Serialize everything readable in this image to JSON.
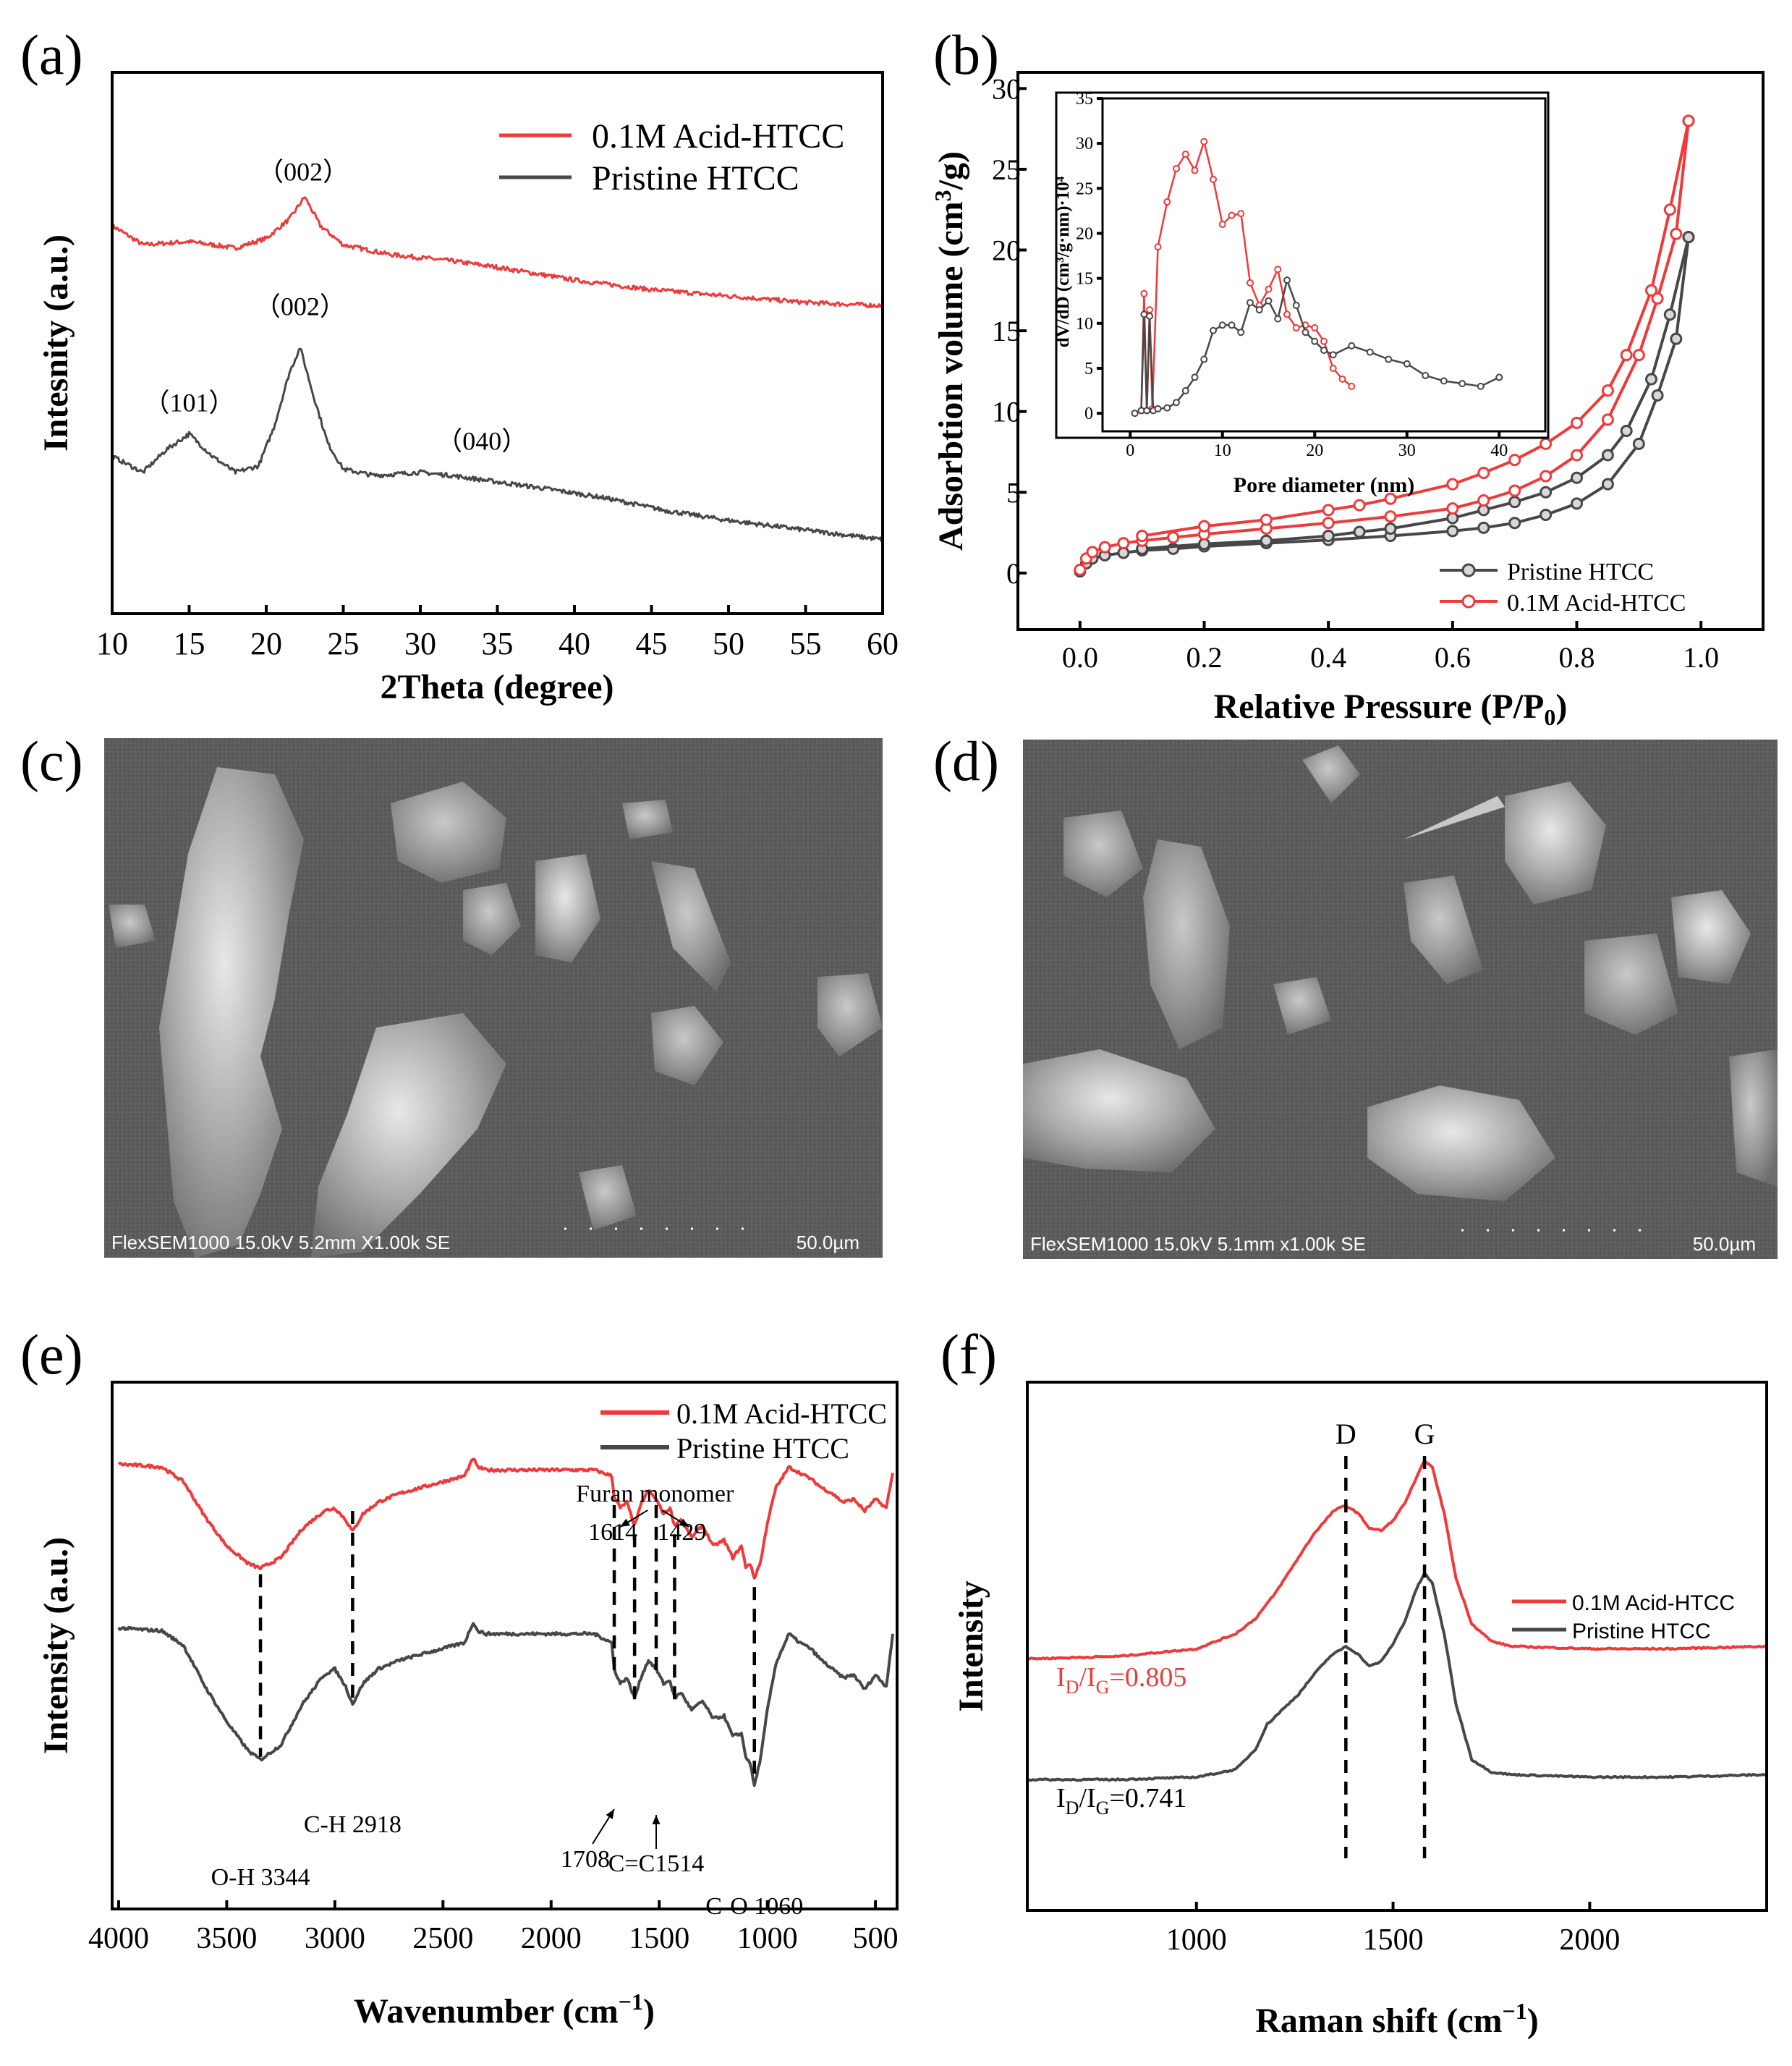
{
  "panels": {
    "a": "(a)",
    "b": "(b)",
    "c": "(c)",
    "d": "(d)",
    "e": "(e)",
    "f": "(f)"
  },
  "colors": {
    "acid": "#f03a3a",
    "pristine": "#474747",
    "sem_bg": "#5a5a5a"
  },
  "sem": {
    "c": {
      "caption": "FlexSEM1000 15.0kV 5.2mm X1.00k SE",
      "scale": "50.0µm"
    },
    "d": {
      "caption": "FlexSEM1000 15.0kV 5.1mm x1.00k SE",
      "scale": "50.0µm"
    }
  },
  "chart_data": [
    {
      "panel": "a",
      "type": "line",
      "xlabel": "2Theta (degree)",
      "ylabel": "Intesnity (a.u.)",
      "xlim": [
        10,
        60
      ],
      "xticks": [
        10,
        15,
        20,
        25,
        30,
        35,
        40,
        45,
        50,
        55,
        60
      ],
      "grid": false,
      "legend_position": "top-right",
      "series": [
        {
          "name": "0.1M Acid-HTCC",
          "color": "#f03a3a",
          "x": [
            10,
            12,
            15,
            18,
            20,
            21.5,
            22.5,
            23.5,
            25,
            28,
            32,
            35,
            40,
            45,
            50,
            55,
            60
          ],
          "y": [
            5.4,
            5.1,
            5.15,
            5.05,
            5.2,
            5.5,
            5.85,
            5.4,
            5.1,
            4.95,
            4.85,
            4.75,
            4.55,
            4.4,
            4.3,
            4.2,
            4.15
          ]
        },
        {
          "name": "Pristine HTCC",
          "color": "#474747",
          "x": [
            10,
            12,
            13.5,
            15,
            16.5,
            18,
            19.5,
            20.5,
            21.5,
            22.2,
            23,
            24,
            25,
            27,
            30,
            32,
            35,
            38,
            42,
            46,
            50,
            55,
            60
          ],
          "y": [
            1.8,
            1.55,
            1.9,
            2.15,
            1.8,
            1.55,
            1.65,
            2.25,
            3.1,
            3.5,
            2.8,
            2.0,
            1.6,
            1.5,
            1.55,
            1.5,
            1.4,
            1.3,
            1.15,
            0.95,
            0.8,
            0.65,
            0.5
          ]
        }
      ],
      "annotations": [
        {
          "text": "（002）",
          "x": 22.4,
          "y": 6.1
        },
        {
          "text": "（101）",
          "x": 15,
          "y": 2.5
        },
        {
          "text": "（002）",
          "x": 22.2,
          "y": 4.0
        },
        {
          "text": "（040）",
          "x": 34,
          "y": 1.9
        }
      ]
    },
    {
      "panel": "b",
      "type": "line",
      "xlabel": "Relative Pressure (P/P₀)",
      "ylabel": "Adsorbtion volume (cm³/g)",
      "xlim": [
        -0.1,
        1.1
      ],
      "ylim": [
        -3.5,
        31
      ],
      "xticks": [
        0.0,
        0.2,
        0.4,
        0.6,
        0.8,
        1.0
      ],
      "yticks": [
        0,
        5,
        10,
        15,
        20,
        25,
        30
      ],
      "grid": false,
      "legend_position": "bottom-right",
      "series": [
        {
          "name": "Pristine HTCC",
          "color": "#474747",
          "adsorption": {
            "x": [
              0.0,
              0.01,
              0.02,
              0.04,
              0.07,
              0.1,
              0.15,
              0.2,
              0.3,
              0.4,
              0.5,
              0.6,
              0.65,
              0.7,
              0.75,
              0.8,
              0.85,
              0.9,
              0.93,
              0.96,
              0.98
            ],
            "y": [
              0.1,
              0.6,
              0.9,
              1.1,
              1.25,
              1.4,
              1.5,
              1.65,
              1.85,
              2.05,
              2.3,
              2.6,
              2.8,
              3.1,
              3.6,
              4.3,
              5.5,
              8.0,
              11.0,
              14.5,
              20.8
            ]
          },
          "desorption": {
            "x": [
              0.98,
              0.95,
              0.92,
              0.88,
              0.85,
              0.8,
              0.75,
              0.7,
              0.65,
              0.6,
              0.5,
              0.45,
              0.4,
              0.3,
              0.2,
              0.1
            ],
            "y": [
              20.8,
              16.0,
              12.0,
              8.8,
              7.3,
              5.9,
              5.0,
              4.4,
              3.9,
              3.4,
              2.75,
              2.55,
              2.3,
              2.0,
              1.8,
              1.5
            ]
          }
        },
        {
          "name": "0.1M Acid-HTCC",
          "color": "#f03a3a",
          "adsorption": {
            "x": [
              0.0,
              0.01,
              0.02,
              0.04,
              0.07,
              0.1,
              0.15,
              0.2,
              0.3,
              0.4,
              0.5,
              0.6,
              0.65,
              0.7,
              0.75,
              0.8,
              0.85,
              0.9,
              0.93,
              0.96,
              0.98
            ],
            "y": [
              0.2,
              0.9,
              1.3,
              1.6,
              1.85,
              2.0,
              2.2,
              2.4,
              2.75,
              3.1,
              3.5,
              4.0,
              4.5,
              5.1,
              6.0,
              7.3,
              9.5,
              13.5,
              17.0,
              21.0,
              28.0
            ]
          },
          "desorption": {
            "x": [
              0.98,
              0.95,
              0.92,
              0.88,
              0.85,
              0.8,
              0.75,
              0.7,
              0.65,
              0.6,
              0.5,
              0.45,
              0.4,
              0.3,
              0.2,
              0.1
            ],
            "y": [
              28.0,
              22.5,
              17.5,
              13.5,
              11.3,
              9.3,
              8.0,
              7.0,
              6.2,
              5.5,
              4.6,
              4.2,
              3.9,
              3.3,
              2.9,
              2.3
            ]
          }
        }
      ],
      "inset": {
        "type": "line",
        "xlabel": "Pore diameter (nm)",
        "ylabel": "dV/dD (cm³/g·nm)·10⁴",
        "xlim": [
          -3,
          45
        ],
        "ylim": [
          -2,
          35
        ],
        "xticks": [
          0,
          10,
          20,
          30,
          40
        ],
        "yticks": [
          0,
          5,
          10,
          15,
          20,
          25,
          30,
          35
        ],
        "series": [
          {
            "name": "0.1M Acid-HTCC",
            "color": "#f03a3a",
            "x": [
              0.5,
              1.2,
              1.5,
              1.8,
              2.1,
              2.4,
              3,
              4,
              5,
              6,
              7,
              8,
              9,
              10,
              11,
              12,
              13,
              14,
              15,
              16,
              17,
              18,
              19,
              20,
              21,
              22,
              23,
              24
            ],
            "y": [
              0,
              0.3,
              13.3,
              0.3,
              11.5,
              0.5,
              18.5,
              23.5,
              27.2,
              28.8,
              27.0,
              30.2,
              26.0,
              21.0,
              22.0,
              22.2,
              14.5,
              12.0,
              13.8,
              16.0,
              11.0,
              9.5,
              9.8,
              9.5,
              8.0,
              5.0,
              3.8,
              3.0
            ]
          },
          {
            "name": "Pristine HTCC",
            "color": "#474747",
            "x": [
              0.5,
              1.2,
              1.5,
              1.8,
              2.1,
              2.5,
              3,
              4,
              5,
              6,
              7,
              8,
              9,
              10,
              11,
              12,
              13,
              14,
              15,
              16,
              17,
              18,
              19,
              20,
              21,
              22,
              24,
              26,
              28,
              30,
              32,
              34,
              36,
              38,
              40
            ],
            "y": [
              0,
              0.3,
              11.0,
              0.3,
              10.8,
              0.3,
              0.5,
              0.6,
              1.2,
              2.5,
              4.0,
              6.0,
              9.2,
              9.8,
              9.8,
              9.0,
              12.3,
              11.5,
              12.5,
              10.5,
              14.8,
              12.0,
              9.0,
              8.0,
              7.0,
              6.5,
              7.5,
              6.8,
              6.0,
              5.5,
              4.2,
              3.6,
              3.3,
              3.0,
              4.0
            ]
          }
        ]
      }
    },
    {
      "panel": "e",
      "type": "line",
      "xlabel": "Wavenumber (cm⁻¹)",
      "ylabel": "Intensity (a.u.)",
      "xlim": [
        4030,
        400
      ],
      "xticks": [
        4000,
        3500,
        3000,
        2500,
        2000,
        1500,
        1000,
        500
      ],
      "grid": false,
      "legend_position": "top-right",
      "series": [
        {
          "name": "0.1M Acid-HTCC",
          "color": "#f03a3a",
          "x": [
            4000,
            3800,
            3700,
            3600,
            3500,
            3400,
            3344,
            3250,
            3150,
            3050,
            3000,
            2950,
            2918,
            2870,
            2800,
            2700,
            2600,
            2500,
            2400,
            2360,
            2340,
            2300,
            2200,
            2000,
            1800,
            1720,
            1708,
            1680,
            1650,
            1614,
            1580,
            1550,
            1514,
            1480,
            1450,
            1429,
            1400,
            1350,
            1300,
            1250,
            1200,
            1160,
            1120,
            1100,
            1080,
            1060,
            1030,
            1000,
            960,
            900,
            850,
            800,
            750,
            700,
            650,
            600,
            550,
            500,
            450,
            420
          ],
          "y": [
            7.6,
            7.55,
            7.3,
            6.7,
            6.2,
            5.9,
            5.82,
            6.0,
            6.5,
            6.8,
            6.85,
            6.65,
            6.45,
            6.75,
            6.95,
            7.1,
            7.2,
            7.3,
            7.4,
            7.7,
            7.55,
            7.5,
            7.5,
            7.5,
            7.5,
            7.4,
            7.05,
            6.85,
            6.95,
            6.55,
            6.95,
            7.15,
            7.0,
            6.75,
            6.85,
            6.55,
            6.65,
            6.35,
            6.55,
            6.2,
            6.3,
            6.0,
            6.2,
            5.85,
            5.9,
            5.65,
            5.95,
            6.6,
            7.2,
            7.55,
            7.45,
            7.35,
            7.2,
            7.1,
            6.95,
            7.0,
            6.8,
            7.0,
            6.85,
            7.45
          ]
        },
        {
          "name": "Pristine HTCC",
          "color": "#474747",
          "x": [
            4000,
            3800,
            3700,
            3600,
            3500,
            3400,
            3344,
            3250,
            3150,
            3050,
            3000,
            2950,
            2918,
            2870,
            2800,
            2700,
            2600,
            2500,
            2400,
            2360,
            2340,
            2300,
            2200,
            2000,
            1800,
            1720,
            1708,
            1680,
            1650,
            1614,
            1580,
            1550,
            1514,
            1480,
            1450,
            1429,
            1400,
            1350,
            1300,
            1250,
            1200,
            1160,
            1120,
            1100,
            1080,
            1060,
            1030,
            1000,
            960,
            900,
            850,
            800,
            750,
            700,
            650,
            600,
            550,
            500,
            450,
            420
          ],
          "y": [
            4.8,
            4.75,
            4.5,
            3.8,
            3.2,
            2.7,
            2.55,
            2.8,
            3.5,
            4.0,
            4.1,
            3.8,
            3.5,
            3.85,
            4.1,
            4.25,
            4.35,
            4.45,
            4.55,
            4.9,
            4.75,
            4.7,
            4.7,
            4.7,
            4.7,
            4.55,
            4.1,
            3.85,
            3.95,
            3.6,
            4.0,
            4.25,
            4.1,
            3.85,
            3.9,
            3.6,
            3.7,
            3.4,
            3.55,
            3.25,
            3.3,
            2.95,
            3.0,
            2.6,
            2.5,
            2.1,
            2.6,
            3.4,
            4.2,
            4.7,
            4.55,
            4.45,
            4.25,
            4.1,
            3.95,
            4.0,
            3.75,
            4.0,
            3.8,
            4.7
          ]
        }
      ],
      "annotations": [
        {
          "text": "O-H 3344",
          "x": 3344
        },
        {
          "text": "C-H 2918",
          "x": 2918
        },
        {
          "text": "1708",
          "x": 1708
        },
        {
          "text": "C=C1514",
          "x": 1514
        },
        {
          "text": "C-O 1060",
          "x": 1060
        },
        {
          "text": "Furan monomer",
          "x": 1520
        },
        {
          "text": "1614",
          "x": 1614
        },
        {
          "text": "1429",
          "x": 1429
        }
      ],
      "marker_lines_x": [
        3344,
        2918,
        1708,
        1614,
        1514,
        1429,
        1060
      ]
    },
    {
      "panel": "f",
      "type": "line",
      "xlabel": "Raman shift (cm⁻¹)",
      "ylabel": "Intensity",
      "xlim": [
        570,
        2450
      ],
      "xticks": [
        1000,
        1500,
        2000
      ],
      "grid": false,
      "legend_position": "upper-right",
      "series": [
        {
          "name": "0.1M Acid-HTCC",
          "color": "#f03a3a",
          "x": [
            570,
            800,
            1000,
            1100,
            1150,
            1200,
            1250,
            1300,
            1350,
            1380,
            1410,
            1440,
            1470,
            1500,
            1530,
            1560,
            1580,
            1600,
            1630,
            1660,
            1700,
            1750,
            1800,
            2000,
            2200,
            2450
          ],
          "y": [
            5.0,
            5.05,
            5.2,
            5.5,
            5.8,
            6.3,
            6.9,
            7.5,
            7.95,
            8.05,
            7.9,
            7.6,
            7.55,
            7.75,
            8.1,
            8.6,
            8.95,
            8.8,
            7.9,
            6.6,
            5.7,
            5.35,
            5.25,
            5.2,
            5.2,
            5.25
          ]
        },
        {
          "name": "Pristine HTCC",
          "color": "#474747",
          "x": [
            570,
            800,
            1000,
            1100,
            1150,
            1180,
            1220,
            1260,
            1300,
            1340,
            1380,
            1410,
            1440,
            1470,
            1500,
            1530,
            1560,
            1580,
            1600,
            1630,
            1660,
            1700,
            1750,
            1800,
            2000,
            2200,
            2450
          ],
          "y": [
            2.6,
            2.6,
            2.65,
            2.8,
            3.2,
            3.7,
            4.0,
            4.3,
            4.7,
            5.05,
            5.25,
            5.1,
            4.85,
            4.95,
            5.3,
            5.75,
            6.4,
            6.7,
            6.5,
            5.5,
            4.1,
            3.0,
            2.75,
            2.7,
            2.65,
            2.65,
            2.7
          ]
        }
      ],
      "annotations": [
        {
          "text": "D",
          "x": 1380
        },
        {
          "text": "G",
          "x": 1580
        },
        {
          "text": "I",
          "sub": "D",
          "mid": "/I",
          "sub2": "G",
          "tail": "=0.805",
          "color": "#f03a3a"
        },
        {
          "text": "I",
          "sub": "D",
          "mid": "/I",
          "sub2": "G",
          "tail": "=0.741",
          "color": "#000000"
        }
      ],
      "marker_lines_x": [
        1380,
        1580
      ]
    }
  ]
}
